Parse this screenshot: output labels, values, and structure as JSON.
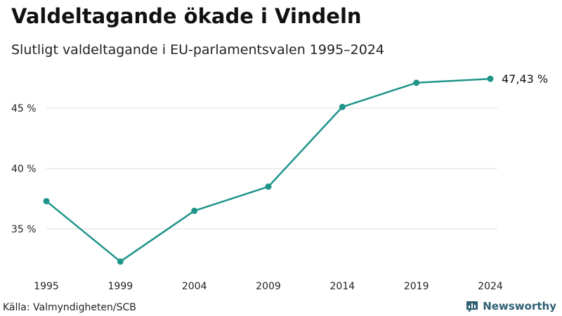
{
  "header": {
    "title": "Valdeltagande ökade i Vindeln",
    "subtitle": "Slutligt valdeltagande i EU-parlamentsvalen 1995–2024"
  },
  "footer": {
    "source": "Källa: Valmyndigheten/SCB",
    "brand": "Newsworthy",
    "brand_icon": "newsworthy-logo-icon"
  },
  "chart_data": {
    "type": "line",
    "title": "Valdeltagande ökade i Vindeln",
    "subtitle": "Slutligt valdeltagande i EU-parlamentsvalen 1995–2024",
    "xlabel": "",
    "ylabel": "",
    "categories": [
      "1995",
      "1999",
      "2004",
      "2009",
      "2014",
      "2019",
      "2024"
    ],
    "series": [
      {
        "name": "Valdeltagande",
        "values": [
          37.3,
          32.3,
          36.5,
          38.5,
          45.1,
          47.1,
          47.43
        ]
      }
    ],
    "ylim": [
      32.0,
      47.8
    ],
    "yticks": [
      35,
      40,
      45
    ],
    "ytick_labels": [
      "35 %",
      "40 %",
      "45 %"
    ],
    "grid": true,
    "end_label": "47,43 %",
    "line_color": "#1f9488",
    "grid_color": "#dddddd"
  }
}
